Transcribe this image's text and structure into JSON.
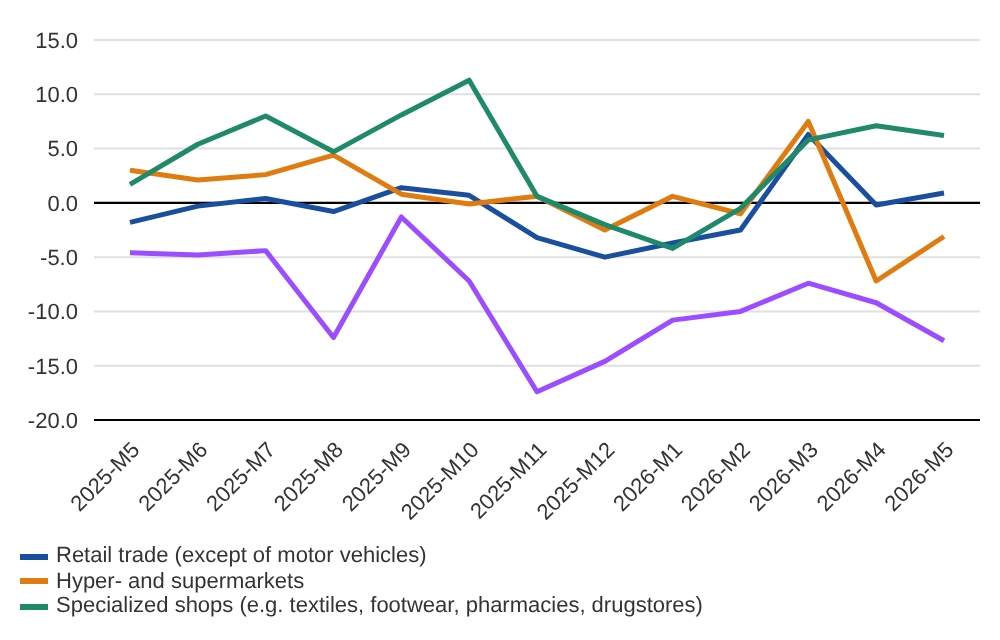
{
  "chart_data": {
    "type": "line",
    "categories": [
      "2025-M5",
      "2025-M6",
      "2025-M7",
      "2025-M8",
      "2025-M9",
      "2025-M10",
      "2025-M11",
      "2025-M12",
      "2026-M1",
      "2026-M2",
      "2026-M3",
      "2026-M4",
      "2026-M5"
    ],
    "series": [
      {
        "name": "Retail trade (except of motor vehicles)",
        "color": "#1a4fa0",
        "values": [
          -1.8,
          -0.3,
          0.4,
          -0.8,
          1.4,
          0.7,
          -3.2,
          -5.0,
          -3.7,
          -2.5,
          6.3,
          -0.2,
          0.9
        ]
      },
      {
        "name": "Hyper- and supermarkets",
        "color": "#e07b10",
        "values": [
          3.0,
          2.1,
          2.6,
          4.4,
          0.8,
          -0.1,
          0.6,
          -2.5,
          0.6,
          -1.0,
          7.5,
          -7.2,
          -3.1
        ]
      },
      {
        "name": "Specialized shops (e.g. textiles, footwear, pharmacies, drugstores)",
        "color": "#1e8a6a",
        "values": [
          1.7,
          5.4,
          8.0,
          4.7,
          8.1,
          11.3,
          0.6,
          -2.0,
          -4.2,
          -0.5,
          5.8,
          7.1,
          6.2
        ]
      },
      {
        "color": "#9b4dff",
        "values": [
          -4.6,
          -4.8,
          -4.4,
          -12.4,
          -1.3,
          -7.2,
          -17.4,
          -14.6,
          -10.8,
          -10.0,
          -7.4,
          -9.2,
          -12.7
        ]
      }
    ],
    "ylim": [
      -20,
      15
    ],
    "yticks": [
      {
        "value": -20,
        "label": "-20.0"
      },
      {
        "value": -15,
        "label": "-15.0"
      },
      {
        "value": -10,
        "label": "-10.0"
      },
      {
        "value": -5,
        "label": "-5.0"
      },
      {
        "value": 0,
        "label": "0.0"
      },
      {
        "value": 5,
        "label": "5.0"
      },
      {
        "value": 10,
        "label": "10.0"
      },
      {
        "value": 15,
        "label": "15.0"
      }
    ],
    "grid": "y",
    "legend": "bottom left",
    "marker": "none",
    "line_style": "solid",
    "ref_lines": [
      {
        "axis": "y",
        "value": 0,
        "color": "#000000"
      }
    ]
  }
}
